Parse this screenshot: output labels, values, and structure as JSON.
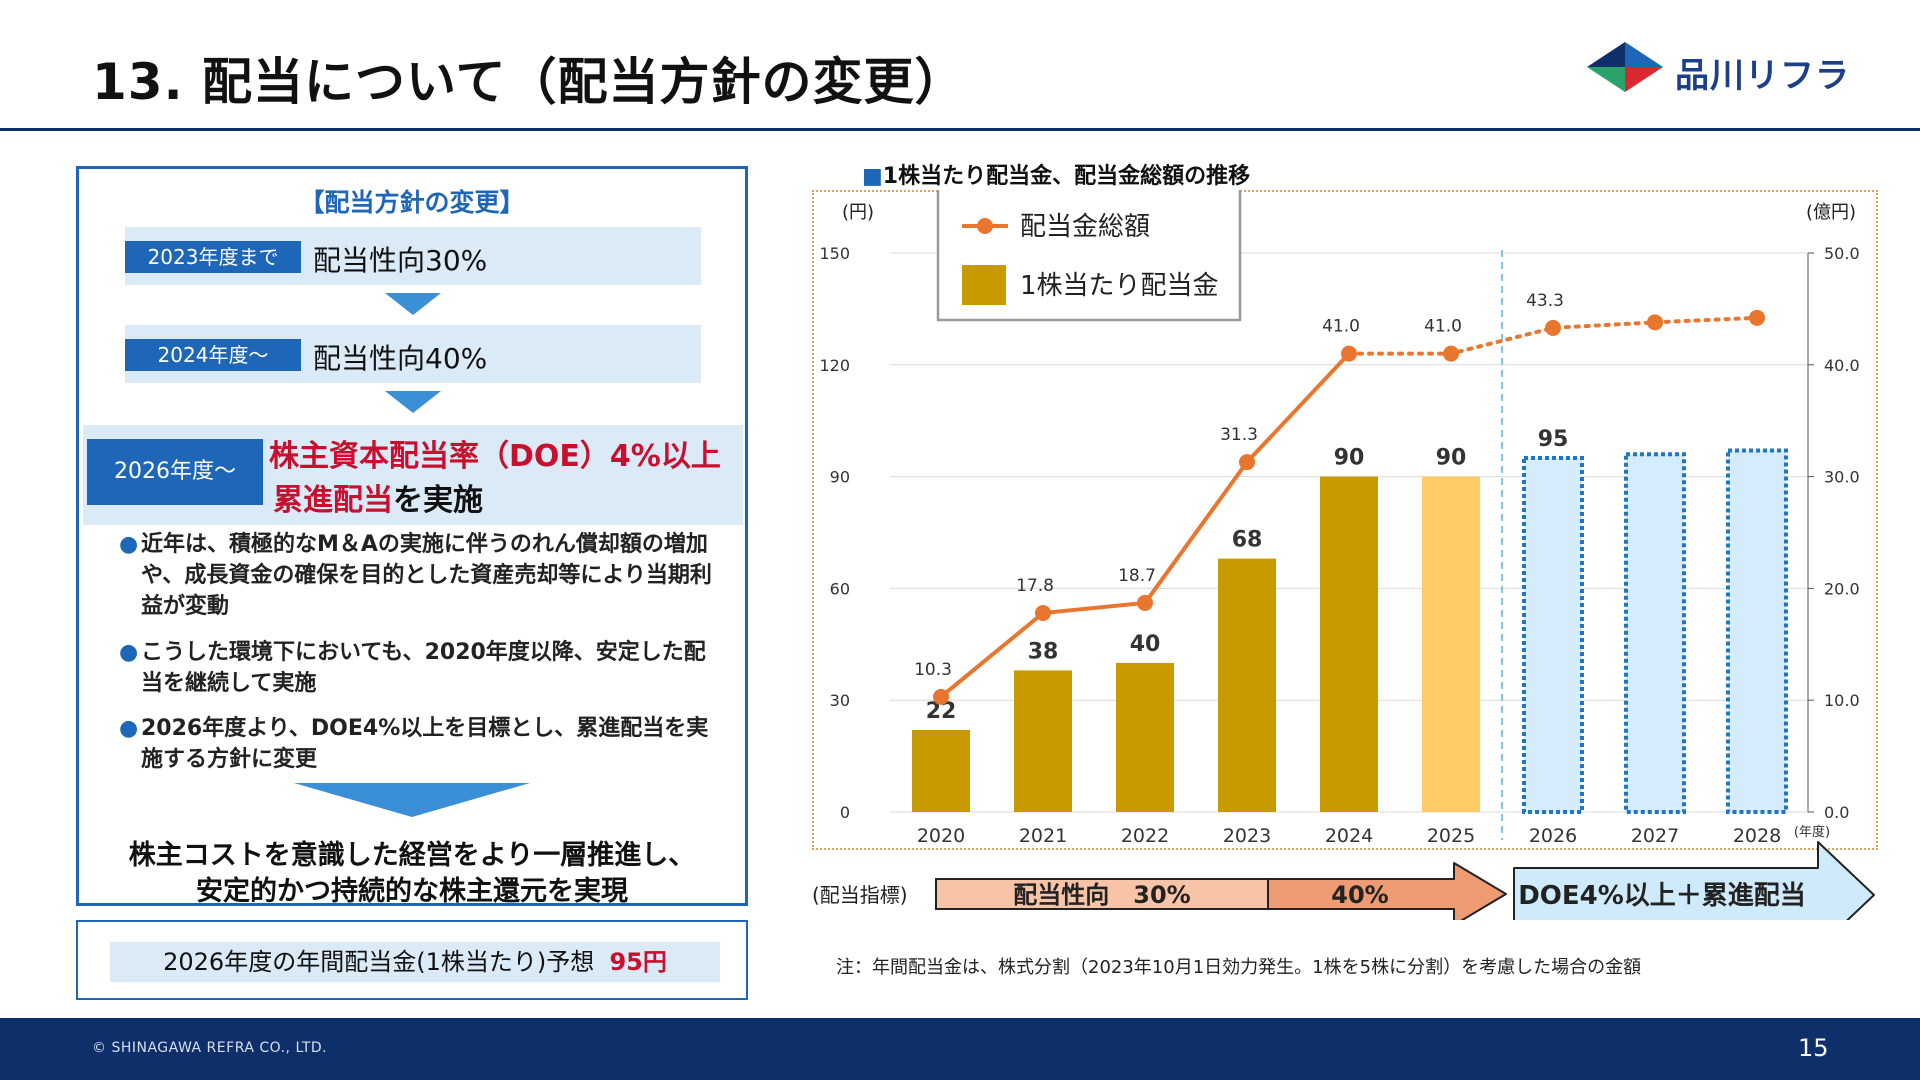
{
  "header": {
    "title": "13. 配当について（配当方針の変更）",
    "logo_text": "品川リフラ"
  },
  "policy": {
    "heading": "【配当方針の変更】",
    "stage1_tag": "2023年度まで",
    "stage1_text": "配当性向30%",
    "stage2_tag": "2024年度～",
    "stage2_text": "配当性向40%",
    "stage3_tag": "2026年度～",
    "stage3_line1": "株主資本配当率（DOE）4%以上",
    "stage3_line2_red": "累進配当",
    "stage3_line2_rest": "を実施",
    "bullet_mark": "●",
    "bullets": [
      "近年は、積極的なM＆Aの実施に伴うのれん償却額の増加や、成長資金の確保を目的とした資産売却等により当期利益が変動",
      "こうした環境下においても、2020年度以降、安定した配当を継続して実施",
      "2026年度より、DOE4%以上を目標とし、累進配当を実施する方針に変更"
    ],
    "conclusion_line1": "株主コストを意識した経営をより一層推進し、",
    "conclusion_line2": "安定的かつ持続的な株主還元を実現"
  },
  "forecast": {
    "text": "2026年度の年間配当金(1株当たり)予想",
    "value": "95円"
  },
  "chart_heading": {
    "marker": "■",
    "text": "1株当たり配当金、配当金総額の推移"
  },
  "chart_data": {
    "type": "bar",
    "categories": [
      "2020",
      "2021",
      "2022",
      "2023",
      "2024",
      "2025",
      "2026",
      "2027",
      "2028"
    ],
    "x_unit": "(年度)",
    "y_left_label": "(円)",
    "y_left_range": [
      0,
      150
    ],
    "y_left_ticks": [
      "0",
      "30",
      "60",
      "90",
      "120",
      "150"
    ],
    "y_right_label": "(億円)",
    "y_right_range": [
      0,
      50
    ],
    "y_right_ticks": [
      "0.0",
      "10.0",
      "20.0",
      "30.0",
      "40.0",
      "50.0"
    ],
    "grid": true,
    "legend": {
      "placement": "top-left",
      "line_name": "配当金総額",
      "bar_name": "1株当たり配当金"
    },
    "bars": {
      "name": "1株当たり配当金",
      "axis": "left",
      "values": [
        22,
        38,
        40,
        68,
        90,
        90,
        95,
        96,
        97
      ],
      "labels": [
        "22",
        "38",
        "40",
        "68",
        "90",
        "90",
        "95",
        "",
        ""
      ],
      "styles": [
        "actual",
        "actual",
        "actual",
        "actual",
        "actual",
        "estimate",
        "projection",
        "projection",
        "projection"
      ],
      "colors": {
        "actual": "#c99a00",
        "estimate": "#ffcc66",
        "projection": "#d4ecfb",
        "projection_border": "#1f76c4"
      }
    },
    "line": {
      "name": "配当金総額",
      "axis": "right",
      "values": [
        10.3,
        17.8,
        18.7,
        31.3,
        41.0,
        41.0,
        43.3,
        43.8,
        44.2
      ],
      "labels": [
        "10.3",
        "17.8",
        "18.7",
        "31.3",
        "41.0",
        "41.0",
        "43.3",
        "",
        ""
      ],
      "solid_through_index": 4,
      "color": "#e9762f"
    },
    "divider_after": "2025",
    "policy_row": {
      "label": "(配当指標)",
      "seg1": "配当性向　30%",
      "seg2": "40%",
      "seg3": "DOE4%以上＋累進配当",
      "colors": {
        "seg1": "#f8c4a8",
        "seg2": "#ee9b73",
        "seg3": "#cfeafb",
        "border": "#222222"
      }
    }
  },
  "note": "注：年間配当金は、株式分割（2023年10月1日効力発生。1株を5株に分割）を考慮した場合の金額",
  "footer": {
    "copyright": "© SHINAGAWA REFRA CO., LTD.",
    "page": "15"
  }
}
